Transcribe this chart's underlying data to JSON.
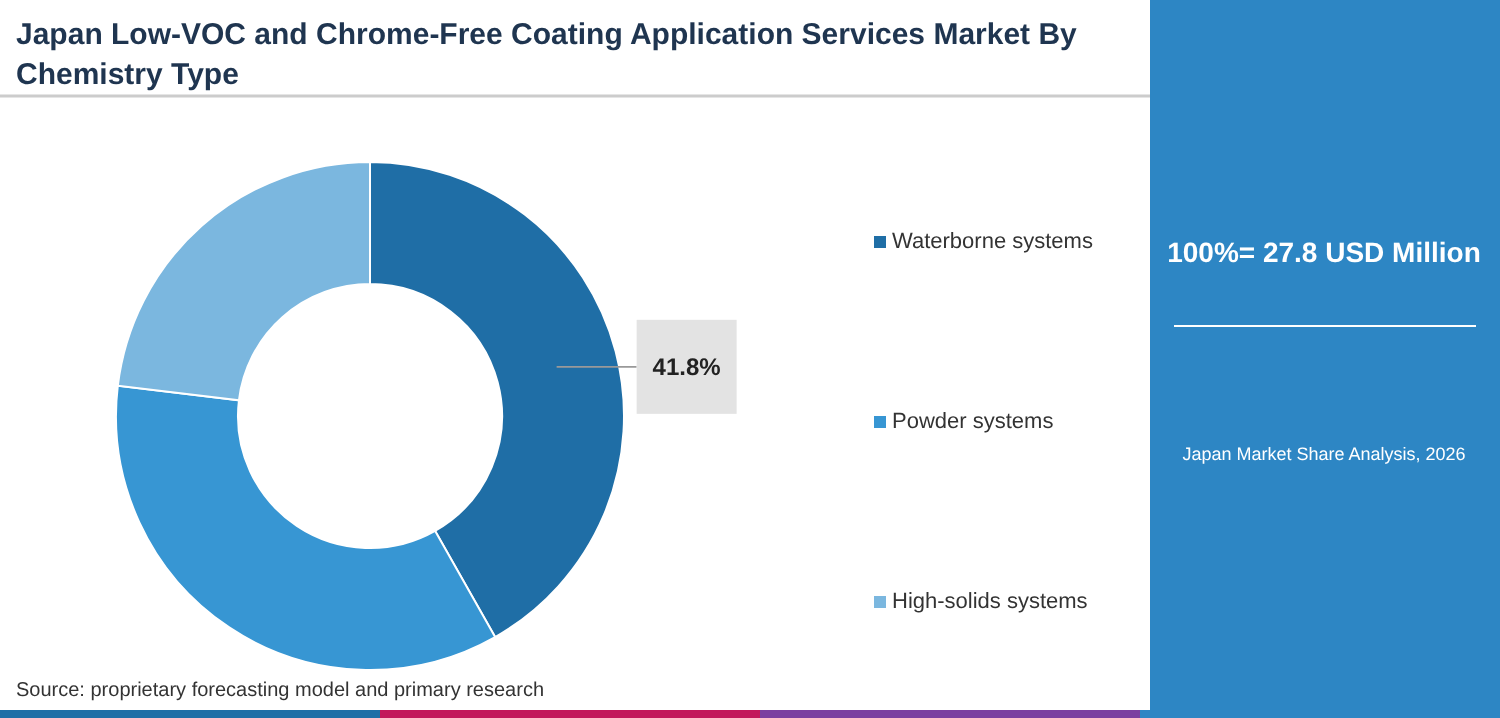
{
  "chart_data": {
    "type": "donut",
    "title": "Japan Low-VOC and Chrome-Free Coating Application Services Market By Chemistry Type",
    "categories": [
      "Waterborne systems",
      "Powder systems",
      "High-solids systems"
    ],
    "values": [
      41.8,
      35.1,
      23.1
    ],
    "colors": [
      "#1f6ea6",
      "#3796d3",
      "#7bb7df"
    ],
    "value_labels": [
      "41.8%",
      null,
      null
    ],
    "legend": "right",
    "annotations": [
      "100%= 27.8 USD Million",
      "Japan Market Share Analysis, 2026",
      "Source: proprietary forecasting model and primary research"
    ]
  }
}
